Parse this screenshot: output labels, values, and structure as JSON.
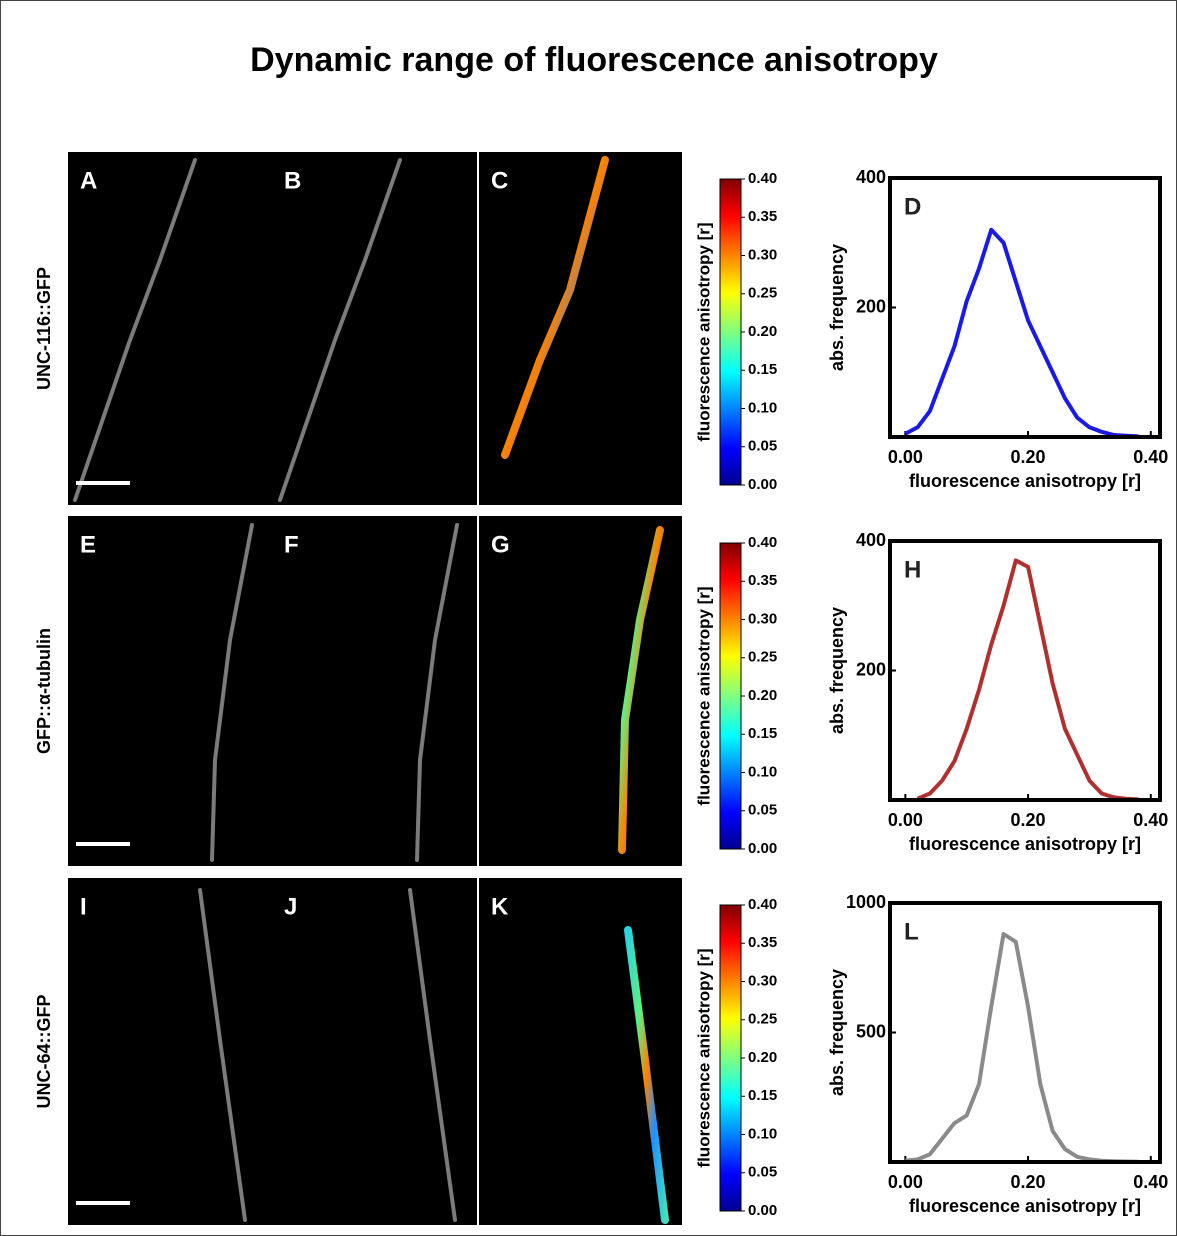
{
  "title": "Dynamic range of fluorescence anisotropy",
  "rows": [
    {
      "label": "UNC-116::GFP",
      "panels": [
        "A",
        "B",
        "C"
      ]
    },
    {
      "label": "GFP::α-tubulin",
      "panels": [
        "E",
        "F",
        "G"
      ]
    },
    {
      "label": "UNC-64::GFP",
      "panels": [
        "I",
        "J",
        "K"
      ]
    }
  ],
  "colorbar": {
    "label": "fluorescence anisotropy [r]",
    "lim": [
      0,
      0.4
    ],
    "ticks": [
      {
        "value": 0,
        "label": "0.00"
      },
      {
        "value": 0.05,
        "label": "0.05"
      },
      {
        "value": 0.1,
        "label": "0.10"
      },
      {
        "value": 0.15,
        "label": "0.15"
      },
      {
        "value": 0.2,
        "label": "0.20"
      },
      {
        "value": 0.25,
        "label": "0.25"
      },
      {
        "value": 0.3,
        "label": "0.30"
      },
      {
        "value": 0.35,
        "label": "0.35"
      },
      {
        "value": 0.4,
        "label": "0.40"
      }
    ]
  },
  "chart_data": [
    {
      "type": "line",
      "panel": "D",
      "xlabel": "fluorescence anisotropy [r]",
      "ylabel": "abs. frequency",
      "color": "#1a1ae6",
      "x": [
        0,
        0.02,
        0.04,
        0.06,
        0.08,
        0.1,
        0.12,
        0.14,
        0.16,
        0.18,
        0.2,
        0.22,
        0.24,
        0.26,
        0.28,
        0.3,
        0.32,
        0.34,
        0.36,
        0.38
      ],
      "values": [
        5,
        15,
        40,
        90,
        140,
        210,
        260,
        320,
        300,
        240,
        180,
        140,
        100,
        60,
        30,
        15,
        8,
        3,
        2,
        1
      ],
      "xlim": [
        -0.025,
        0.415
      ],
      "ylim": [
        0,
        400
      ],
      "yticks": [
        200,
        400
      ],
      "xticks": [
        {
          "value": 0,
          "label": "0.00"
        },
        {
          "value": 0.2,
          "label": "0.20"
        },
        {
          "value": 0.4,
          "label": "0.40"
        }
      ]
    },
    {
      "type": "line",
      "panel": "H",
      "xlabel": "fluorescence anisotropy [r]",
      "ylabel": "abs. frequency",
      "color": "#b03030",
      "x": [
        0.02,
        0.04,
        0.06,
        0.08,
        0.1,
        0.12,
        0.14,
        0.16,
        0.18,
        0.2,
        0.22,
        0.24,
        0.26,
        0.28,
        0.3,
        0.32,
        0.34,
        0.36,
        0.38
      ],
      "values": [
        2,
        10,
        30,
        60,
        110,
        170,
        240,
        300,
        370,
        360,
        270,
        180,
        110,
        70,
        30,
        10,
        4,
        2,
        1
      ],
      "xlim": [
        -0.025,
        0.415
      ],
      "ylim": [
        0,
        400
      ],
      "yticks": [
        200,
        400
      ],
      "xticks": [
        {
          "value": 0,
          "label": "0.00"
        },
        {
          "value": 0.2,
          "label": "0.20"
        },
        {
          "value": 0.4,
          "label": "0.40"
        }
      ]
    },
    {
      "type": "line",
      "panel": "L",
      "xlabel": "fluorescence anisotropy [r]",
      "ylabel": "abs. frequency",
      "color": "#8a8a8a",
      "x": [
        0,
        0.02,
        0.04,
        0.06,
        0.08,
        0.1,
        0.12,
        0.14,
        0.16,
        0.18,
        0.2,
        0.22,
        0.24,
        0.26,
        0.28,
        0.3,
        0.32,
        0.34,
        0.36,
        0.38
      ],
      "values": [
        5,
        10,
        30,
        90,
        150,
        180,
        300,
        600,
        880,
        850,
        600,
        300,
        120,
        50,
        20,
        10,
        5,
        3,
        2,
        1
      ],
      "xlim": [
        -0.025,
        0.415
      ],
      "ylim": [
        0,
        1000
      ],
      "yticks": [
        500,
        1000
      ],
      "xticks": [
        {
          "value": 0,
          "label": "0.00"
        },
        {
          "value": 0.2,
          "label": "0.20"
        },
        {
          "value": 0.4,
          "label": "0.40"
        }
      ]
    }
  ]
}
